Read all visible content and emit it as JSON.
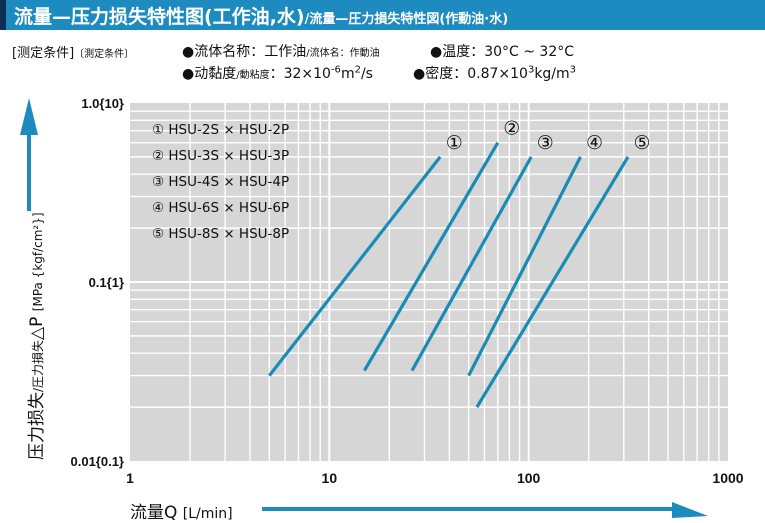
{
  "header": {
    "title": "流量—压力损失特性图(工作油,水)",
    "subtitle": "/流量—圧力損失特性図(作動油·水)"
  },
  "conditions": {
    "label": "[测定条件]",
    "label_jp": "〔測定条件〕",
    "fluid": "●流体名称：工作油",
    "fluid_jp": "/流体名：作動油",
    "temperature": "●温度：30°C ~ 32°C",
    "viscosity": "●动黏度",
    "viscosity_jp": "/動粘度",
    "viscosity_value": "：32×10",
    "viscosity_exp": "-6",
    "viscosity_unit": "m",
    "viscosity_unit_exp": "2",
    "viscosity_unit_tail": "/s",
    "density": "●密度：0.87×10",
    "density_exp": "3",
    "density_unit": "kg/m",
    "density_unit_exp": "3"
  },
  "axes": {
    "x_label": "流量Q",
    "x_unit": "[L/min]",
    "y_label": "压力损失",
    "y_label_jp": "/圧力損失",
    "y_symbol": "△P",
    "y_unit": "[MPa {kgf/cm²}]"
  },
  "colors": {
    "header": "#1d8ac0",
    "header_mark": "#0d2f56",
    "series": "#1a8bb5",
    "plot_bg": "#d6d6d6",
    "grid": "#ffffff",
    "arrow": "#1d8ac0"
  },
  "chart_data": {
    "type": "line",
    "x_scale": "log",
    "y_scale": "log",
    "xlim": [
      1,
      1000
    ],
    "ylim": [
      0.01,
      1.0
    ],
    "x_ticks": [
      {
        "value": 1,
        "label": "1"
      },
      {
        "value": 10,
        "label": "10"
      },
      {
        "value": 100,
        "label": "100"
      },
      {
        "value": 1000,
        "label": "1000"
      }
    ],
    "y_ticks": [
      {
        "value": 1.0,
        "label": "1.0{10}"
      },
      {
        "value": 0.1,
        "label": "0.1{1}"
      },
      {
        "value": 0.01,
        "label": "0.01{0.1}"
      }
    ],
    "grid": true,
    "series": [
      {
        "name": "① HSU-2S × HSU-2P",
        "marker": "①",
        "x": [
          5,
          36
        ],
        "y": [
          0.03,
          0.5
        ]
      },
      {
        "name": "② HSU-3S × HSU-3P",
        "marker": "②",
        "x": [
          15,
          70
        ],
        "y": [
          0.032,
          0.6
        ]
      },
      {
        "name": "③ HSU-4S × HSU-4P",
        "marker": "③",
        "x": [
          26,
          103
        ],
        "y": [
          0.032,
          0.5
        ]
      },
      {
        "name": "④ HSU-6S × HSU-6P",
        "marker": "④",
        "x": [
          50,
          182
        ],
        "y": [
          0.03,
          0.5
        ]
      },
      {
        "name": "⑤ HSU-8S × HSU-8P",
        "marker": "⑤",
        "x": [
          55,
          315
        ],
        "y": [
          0.02,
          0.5
        ]
      }
    ]
  }
}
